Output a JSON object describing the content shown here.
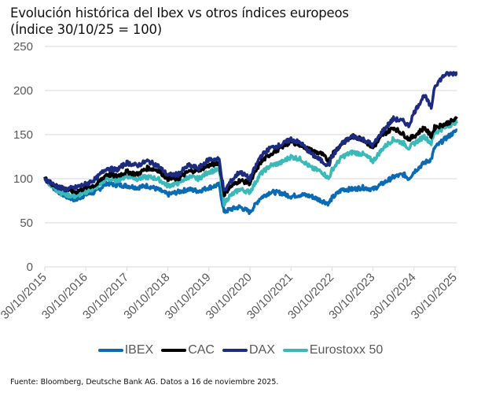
{
  "title_line1": "Evolución histórica del Ibex vs otros índices europeos",
  "title_line2": "(Índice 30/10/25 = 100)",
  "source": "Fuente: Bloomberg, Deutsche Bank AG. Datos a 16 de noviembre  2025.",
  "chart_data": {
    "type": "line",
    "title": "Evolución histórica del Ibex vs otros índices europeos (Índice 30/10/25 = 100)",
    "xlabel": "",
    "ylabel": "",
    "ylim": [
      0,
      250
    ],
    "yticks": [
      0,
      50,
      100,
      150,
      200,
      250
    ],
    "xlim": [
      2015.83,
      2025.88
    ],
    "x_tick_labels": [
      "30/10/2015",
      "30/10/2016",
      "30/10/2017",
      "30/10/2018",
      "30/10/2019",
      "30/10/2020",
      "30/10/2021",
      "30/10/2022",
      "30/10/2023",
      "30/10/2024",
      "30/10/2025"
    ],
    "grid": true,
    "legend_position": "bottom",
    "x": [
      2015.83,
      2016.08,
      2016.33,
      2016.58,
      2016.83,
      2017.08,
      2017.33,
      2017.58,
      2017.83,
      2018.08,
      2018.33,
      2018.58,
      2018.83,
      2019.08,
      2019.33,
      2019.58,
      2019.83,
      2020.08,
      2020.2,
      2020.33,
      2020.58,
      2020.83,
      2021.08,
      2021.33,
      2021.58,
      2021.83,
      2022.08,
      2022.33,
      2022.58,
      2022.75,
      2022.83,
      2023.08,
      2023.33,
      2023.58,
      2023.83,
      2024.08,
      2024.33,
      2024.58,
      2024.7,
      2024.83,
      2025.08,
      2025.25,
      2025.33,
      2025.58,
      2025.88
    ],
    "series": [
      {
        "name": "IBEX",
        "color": "#0a6ab4",
        "values": [
          100,
          88,
          80,
          76,
          82,
          85,
          95,
          93,
          92,
          90,
          92,
          88,
          82,
          85,
          88,
          86,
          90,
          93,
          62,
          65,
          68,
          62,
          78,
          85,
          84,
          80,
          82,
          80,
          75,
          72,
          78,
          88,
          88,
          90,
          88,
          95,
          102,
          105,
          100,
          108,
          118,
          122,
          135,
          145,
          155
        ]
      },
      {
        "name": "CAC",
        "color": "#000000",
        "values": [
          100,
          92,
          88,
          85,
          90,
          93,
          105,
          103,
          108,
          105,
          112,
          110,
          100,
          100,
          108,
          110,
          115,
          118,
          82,
          90,
          98,
          95,
          118,
          128,
          135,
          142,
          138,
          132,
          128,
          120,
          128,
          140,
          148,
          145,
          135,
          150,
          158,
          150,
          145,
          148,
          158,
          148,
          158,
          162,
          168
        ]
      },
      {
        "name": "DAX",
        "color": "#1c2a80",
        "values": [
          100,
          92,
          88,
          90,
          94,
          100,
          112,
          110,
          118,
          115,
          120,
          115,
          104,
          105,
          115,
          112,
          122,
          122,
          85,
          95,
          108,
          100,
          125,
          135,
          138,
          145,
          140,
          128,
          120,
          115,
          125,
          140,
          148,
          145,
          138,
          155,
          168,
          165,
          160,
          175,
          195,
          180,
          205,
          218,
          220
        ]
      },
      {
        "name": "Eurostoxx 50",
        "color": "#3bb9b9",
        "values": [
          100,
          88,
          82,
          80,
          85,
          90,
          100,
          98,
          103,
          100,
          102,
          100,
          92,
          95,
          102,
          100,
          108,
          110,
          72,
          80,
          88,
          85,
          105,
          115,
          118,
          125,
          122,
          112,
          108,
          100,
          110,
          125,
          130,
          128,
          120,
          135,
          145,
          140,
          135,
          140,
          148,
          140,
          152,
          158,
          165
        ]
      }
    ]
  }
}
